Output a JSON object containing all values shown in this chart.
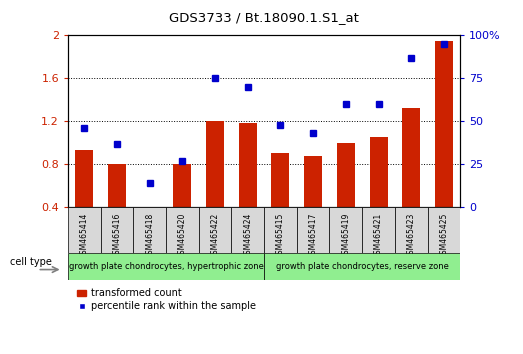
{
  "title": "GDS3733 / Bt.18090.1.S1_at",
  "samples": [
    "GSM465414",
    "GSM465416",
    "GSM465418",
    "GSM465420",
    "GSM465422",
    "GSM465424",
    "GSM465415",
    "GSM465417",
    "GSM465419",
    "GSM465421",
    "GSM465423",
    "GSM465425"
  ],
  "bar_values": [
    0.93,
    0.8,
    0.4,
    0.8,
    1.2,
    1.18,
    0.9,
    0.88,
    1.0,
    1.05,
    1.32,
    1.95
  ],
  "dot_values": [
    46,
    37,
    14,
    27,
    75,
    70,
    48,
    43,
    60,
    60,
    87,
    95
  ],
  "group1_label": "growth plate chondrocytes, hypertrophic zone",
  "group2_label": "growth plate chondrocytes, reserve zone",
  "group1_count": 6,
  "group2_count": 6,
  "bar_color": "#cc2200",
  "dot_color": "#0000cc",
  "ylim_left": [
    0.4,
    2.0
  ],
  "ylim_right": [
    0,
    100
  ],
  "yticks_left": [
    0.4,
    0.8,
    1.2,
    1.6,
    2.0
  ],
  "yticks_right": [
    0,
    25,
    50,
    75,
    100
  ],
  "legend_bar_label": "transformed count",
  "legend_dot_label": "percentile rank within the sample",
  "cell_type_label": "cell type",
  "group_color": "#90EE90",
  "gray_cell_color": "#d8d8d8",
  "white_bg": "#ffffff"
}
